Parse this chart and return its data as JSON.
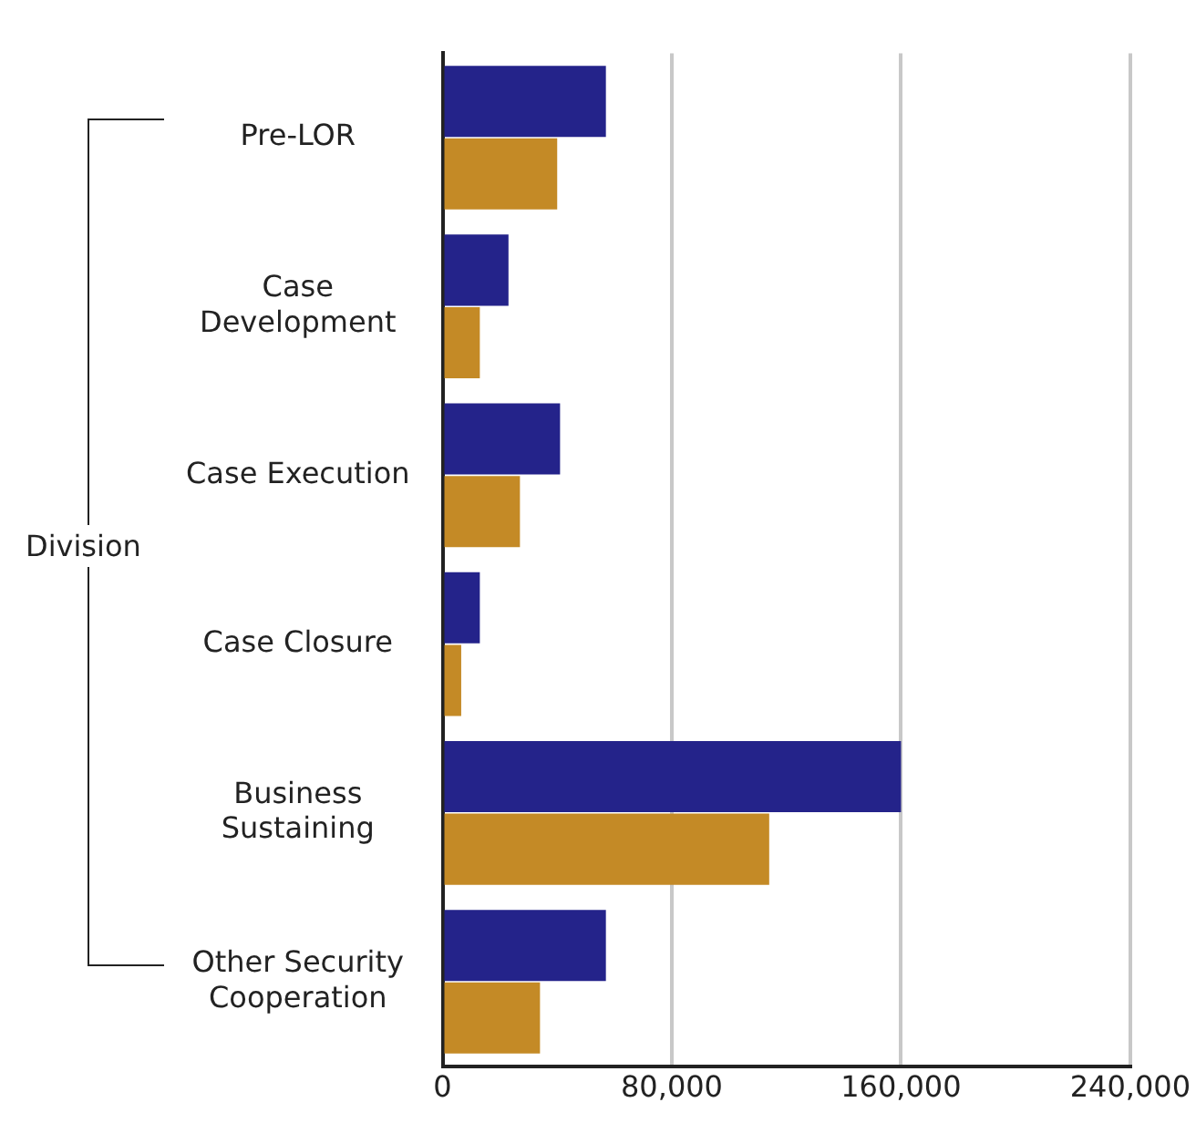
{
  "chart_data": {
    "type": "bar",
    "orientation": "horizontal",
    "ylabel": "Division",
    "categories": [
      "Pre-LOR",
      "Case Development",
      "Case Execution",
      "Case Closure",
      "Business Sustaining",
      "Other Security Cooperation"
    ],
    "series": [
      {
        "color": "#24238a",
        "values": [
          57000,
          23000,
          41000,
          13000,
          160000,
          57000
        ]
      },
      {
        "color": "#c48a26",
        "values": [
          40000,
          13000,
          27000,
          6500,
          114000,
          34000
        ]
      }
    ],
    "xlim": [
      0,
      240000
    ],
    "xticks": [
      0,
      {
        "value": 80000,
        "label": "80,000"
      },
      {
        "value": 160000,
        "label": "160,000"
      },
      {
        "value": 240000,
        "label": "240,000"
      }
    ],
    "grid": "x"
  }
}
